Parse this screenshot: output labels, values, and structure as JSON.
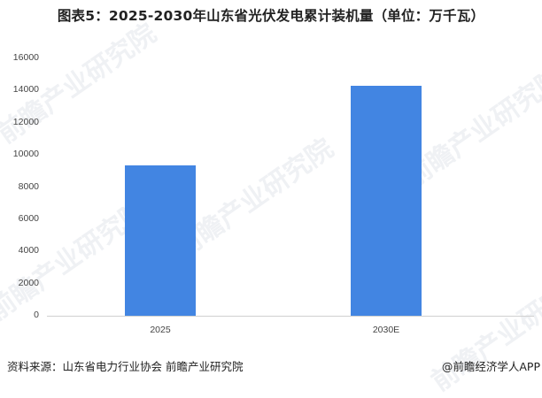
{
  "title": "图表5：2025-2030年山东省光伏发电累计装机量（单位：万千瓦）",
  "chart_data": {
    "type": "bar",
    "title": "图表5：2025-2030年山东省光伏发电累计装机量（单位：万千瓦）",
    "categories": [
      "2025",
      "2030E"
    ],
    "values": [
      9350,
      14300
    ],
    "xlabel": "",
    "ylabel": "万千瓦",
    "ylim": [
      0,
      16000
    ],
    "yticks": [
      "0",
      "2000",
      "4000",
      "6000",
      "8000",
      "10000",
      "12000",
      "14000",
      "16000"
    ],
    "grid": false,
    "legend": null,
    "bar_color": "#4285e2"
  },
  "footer": {
    "source": "资料来源：山东省电力行业协会  前瞻产业研究院",
    "credit": "@前瞻经济学人APP"
  },
  "watermark": "前瞻产业研究院"
}
